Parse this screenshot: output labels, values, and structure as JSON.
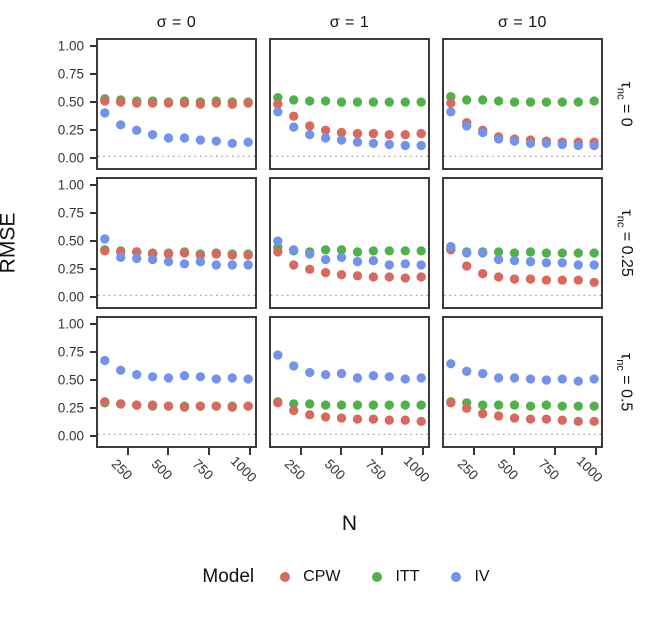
{
  "figure": {
    "y_axis_title": "RMSE",
    "x_axis_title": "N"
  },
  "facets": {
    "cols": [
      {
        "label": "σ = 0"
      },
      {
        "label": "σ = 1"
      },
      {
        "label": "σ = 10"
      }
    ],
    "rows": [
      {
        "prefix": "τ",
        "subscript": "nc",
        "suffix": " = 0"
      },
      {
        "prefix": "τ",
        "subscript": "nc",
        "suffix": " = 0.25"
      },
      {
        "prefix": "τ",
        "subscript": "nc",
        "suffix": " = 0.5"
      }
    ]
  },
  "legend": {
    "title": "Model",
    "items": [
      {
        "label": "CPW",
        "color": "#d8695e"
      },
      {
        "label": "ITT",
        "color": "#50b049"
      },
      {
        "label": "IV",
        "color": "#7293eb"
      }
    ]
  },
  "chart_data": {
    "type": "scatter",
    "xlabel": "N",
    "ylabel": "RMSE",
    "ylim": [
      0,
      1
    ],
    "x": [
      100,
      200,
      300,
      400,
      500,
      600,
      700,
      800,
      900,
      1000
    ],
    "x_ticks": [
      250,
      500,
      750,
      1000
    ],
    "y_tick_labels": [
      "1.00",
      "0.75",
      "0.50",
      "0.25",
      "0.00"
    ],
    "reference_line_y": 0,
    "grid": false,
    "legend_position": "bottom",
    "draw_order": [
      "ITT",
      "CPW",
      "IV"
    ],
    "facet_cols": [
      "σ = 0",
      "σ = 1",
      "σ = 10"
    ],
    "facet_rows": [
      "τnc = 0",
      "τnc = 0.25",
      "τnc = 0.5"
    ],
    "panels": [
      {
        "row": "τnc = 0",
        "col": "σ = 0",
        "series": {
          "CPW": [
            0.51,
            0.5,
            0.49,
            0.49,
            0.49,
            0.49,
            0.48,
            0.49,
            0.48,
            0.49
          ],
          "ITT": [
            0.53,
            0.52,
            0.51,
            0.51,
            0.5,
            0.51,
            0.5,
            0.51,
            0.5,
            0.5
          ],
          "IV": [
            0.4,
            0.29,
            0.24,
            0.2,
            0.17,
            0.17,
            0.15,
            0.14,
            0.12,
            0.13
          ]
        }
      },
      {
        "row": "τnc = 0",
        "col": "σ = 1",
        "series": {
          "CPW": [
            0.48,
            0.37,
            0.28,
            0.24,
            0.22,
            0.21,
            0.21,
            0.2,
            0.2,
            0.21
          ],
          "ITT": [
            0.54,
            0.52,
            0.51,
            0.51,
            0.5,
            0.5,
            0.5,
            0.5,
            0.5,
            0.5
          ],
          "IV": [
            0.41,
            0.27,
            0.2,
            0.17,
            0.15,
            0.13,
            0.12,
            0.11,
            0.1,
            0.1
          ]
        }
      },
      {
        "row": "τnc = 0",
        "col": "σ = 10",
        "series": {
          "CPW": [
            0.49,
            0.31,
            0.24,
            0.18,
            0.16,
            0.15,
            0.14,
            0.13,
            0.13,
            0.13
          ],
          "ITT": [
            0.55,
            0.52,
            0.52,
            0.51,
            0.5,
            0.5,
            0.5,
            0.5,
            0.5,
            0.51
          ],
          "IV": [
            0.41,
            0.28,
            0.22,
            0.16,
            0.14,
            0.12,
            0.12,
            0.11,
            0.1,
            0.1
          ]
        }
      },
      {
        "row": "τnc = 0.25",
        "col": "σ = 0",
        "series": {
          "CPW": [
            0.41,
            0.4,
            0.4,
            0.38,
            0.38,
            0.39,
            0.37,
            0.38,
            0.37,
            0.37
          ],
          "ITT": [
            0.42,
            0.41,
            0.4,
            0.39,
            0.39,
            0.4,
            0.38,
            0.39,
            0.38,
            0.38
          ],
          "IV": [
            0.52,
            0.35,
            0.34,
            0.33,
            0.31,
            0.29,
            0.31,
            0.28,
            0.28,
            0.28
          ]
        }
      },
      {
        "row": "τnc = 0.25",
        "col": "σ = 1",
        "series": {
          "CPW": [
            0.4,
            0.28,
            0.24,
            0.21,
            0.19,
            0.18,
            0.17,
            0.17,
            0.16,
            0.17
          ],
          "ITT": [
            0.44,
            0.41,
            0.4,
            0.42,
            0.42,
            0.4,
            0.41,
            0.41,
            0.41,
            0.41
          ],
          "IV": [
            0.5,
            0.42,
            0.38,
            0.33,
            0.35,
            0.31,
            0.32,
            0.28,
            0.29,
            0.28
          ]
        }
      },
      {
        "row": "τnc = 0.25",
        "col": "σ = 10",
        "series": {
          "CPW": [
            0.42,
            0.27,
            0.2,
            0.17,
            0.15,
            0.15,
            0.14,
            0.14,
            0.14,
            0.12
          ],
          "ITT": [
            0.43,
            0.4,
            0.4,
            0.4,
            0.39,
            0.4,
            0.39,
            0.39,
            0.39,
            0.39
          ],
          "IV": [
            0.45,
            0.39,
            0.39,
            0.33,
            0.32,
            0.31,
            0.3,
            0.3,
            0.28,
            0.28
          ]
        }
      },
      {
        "row": "τnc = 0.5",
        "col": "σ = 0",
        "series": {
          "CPW": [
            0.3,
            0.28,
            0.27,
            0.27,
            0.26,
            0.25,
            0.26,
            0.26,
            0.25,
            0.26
          ],
          "ITT": [
            0.29,
            0.28,
            0.27,
            0.26,
            0.26,
            0.26,
            0.26,
            0.26,
            0.26,
            0.26
          ],
          "IV": [
            0.68,
            0.59,
            0.55,
            0.53,
            0.52,
            0.54,
            0.53,
            0.51,
            0.52,
            0.51
          ]
        }
      },
      {
        "row": "τnc = 0.5",
        "col": "σ = 1",
        "series": {
          "CPW": [
            0.29,
            0.22,
            0.18,
            0.16,
            0.15,
            0.14,
            0.14,
            0.13,
            0.13,
            0.12
          ],
          "ITT": [
            0.3,
            0.28,
            0.28,
            0.27,
            0.27,
            0.27,
            0.27,
            0.27,
            0.27,
            0.27
          ],
          "IV": [
            0.73,
            0.63,
            0.57,
            0.55,
            0.56,
            0.52,
            0.54,
            0.53,
            0.51,
            0.52
          ]
        }
      },
      {
        "row": "τnc = 0.5",
        "col": "σ = 10",
        "series": {
          "CPW": [
            0.29,
            0.24,
            0.19,
            0.17,
            0.15,
            0.14,
            0.14,
            0.13,
            0.12,
            0.12
          ],
          "ITT": [
            0.3,
            0.29,
            0.27,
            0.27,
            0.27,
            0.26,
            0.27,
            0.26,
            0.26,
            0.26
          ],
          "IV": [
            0.65,
            0.58,
            0.56,
            0.52,
            0.52,
            0.51,
            0.5,
            0.51,
            0.49,
            0.51
          ]
        }
      }
    ]
  }
}
